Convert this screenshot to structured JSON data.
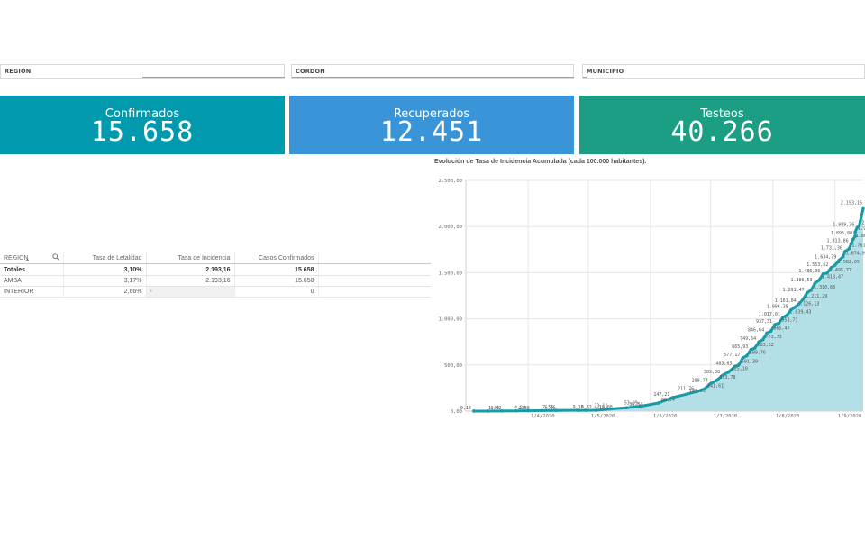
{
  "filters": [
    {
      "label": "REGIÓN"
    },
    {
      "label": "CORDON"
    },
    {
      "label": "MUNICIPIO"
    }
  ],
  "kpis": [
    {
      "title": "Confirmados",
      "value": "15.658",
      "color": "#0099ad"
    },
    {
      "title": "Recuperados",
      "value": "12.451",
      "color": "#3a95d8"
    },
    {
      "title": "Testeos",
      "value": "40.266",
      "color": "#1b9e84"
    }
  ],
  "table": {
    "headers": [
      "REGION",
      "Tasa de Letalidad",
      "Tasa de Incidencia",
      "Casos Confirmados"
    ],
    "totals": [
      "Totales",
      "3,10%",
      "2.193,16",
      "15.658"
    ],
    "rows": [
      [
        "AMBA",
        "3,17%",
        "2.193,16",
        "15.658"
      ],
      [
        "INTERIOR",
        "2,66%",
        "-",
        "0"
      ]
    ]
  },
  "chart_title": "Evolución de Tasa de Incidencia Acumulada (cada 100.000 habitantes).",
  "chart_data": {
    "type": "area",
    "title": "Evolución de Tasa de Incidencia Acumulada (cada 100.000 habitantes).",
    "xlabel": "",
    "ylabel": "",
    "ylim": [
      0,
      2500
    ],
    "y_ticks": [
      "0,00",
      "500,00",
      "1.000,00",
      "1.500,00",
      "2.000,00",
      "2.500,00"
    ],
    "x_ticks": [
      {
        "label": "1/4/2020",
        "date": "2020-04-01"
      },
      {
        "label": "1/5/2020",
        "date": "2020-05-01"
      },
      {
        "label": "1/6/2020",
        "date": "2020-06-01"
      },
      {
        "label": "1/7/2020",
        "date": "2020-07-01"
      },
      {
        "label": "1/8/2020",
        "date": "2020-08-01"
      },
      {
        "label": "1/9/2020",
        "date": "2020-09-01"
      }
    ],
    "x_range": [
      "2020-03-01",
      "2020-09-15"
    ],
    "series_color": "#1a9aa6",
    "area_color": "#b3e0e6",
    "grid": true,
    "points": [
      {
        "x": "2020-03-05",
        "y": 0.14,
        "label": "0,14"
      },
      {
        "x": "2020-03-12",
        "y": 0.42,
        "label": "0,42"
      },
      {
        "x": "2020-03-19",
        "y": 1.4,
        "label": "1,40"
      },
      {
        "x": "2020-03-26",
        "y": 2.38,
        "label": "2,38"
      },
      {
        "x": "2020-04-01",
        "y": 4.2,
        "label": "4,20"
      },
      {
        "x": "2020-04-08",
        "y": 6.16,
        "label": "6,16"
      },
      {
        "x": "2020-04-15",
        "y": 7.56,
        "label": "7,56"
      },
      {
        "x": "2020-04-26",
        "y": 8.82,
        "label": "8,82"
      },
      {
        "x": "2020-04-30",
        "y": 9.1,
        "label": "9,10"
      },
      {
        "x": "2020-05-05",
        "y": 10.08,
        "label": "10,08"
      },
      {
        "x": "2020-05-12",
        "y": 23.11,
        "label": "23,11"
      },
      {
        "x": "2020-05-20",
        "y": 36.84,
        "label": "36,84"
      },
      {
        "x": "2020-05-27",
        "y": 53.09,
        "label": "53,09"
      },
      {
        "x": "2020-06-05",
        "y": 88.24,
        "label": "88,24"
      },
      {
        "x": "2020-06-12",
        "y": 147.21,
        "label": "147,21"
      },
      {
        "x": "2020-06-19",
        "y": 183.51,
        "label": "183,51"
      },
      {
        "x": "2020-06-24",
        "y": 211.76,
        "label": "211,76"
      },
      {
        "x": "2020-06-28",
        "y": 241.61,
        "label": "241,61"
      },
      {
        "x": "2020-07-01",
        "y": 299.74,
        "label": "299,74"
      },
      {
        "x": "2020-07-04",
        "y": 333.78,
        "label": "333,78"
      },
      {
        "x": "2020-07-07",
        "y": 389.38,
        "label": "389,38"
      },
      {
        "x": "2020-07-10",
        "y": 425.1,
        "label": "425,10"
      },
      {
        "x": "2020-07-13",
        "y": 483.65,
        "label": "483,65"
      },
      {
        "x": "2020-07-15",
        "y": 501.3,
        "label": "501,30"
      },
      {
        "x": "2020-07-17",
        "y": 577.17,
        "label": "577,17"
      },
      {
        "x": "2020-07-19",
        "y": 599.76,
        "label": "599,76"
      },
      {
        "x": "2020-07-21",
        "y": 665.93,
        "label": "665,93"
      },
      {
        "x": "2020-07-23",
        "y": 683.52,
        "label": "683,52"
      },
      {
        "x": "2020-07-25",
        "y": 749.64,
        "label": "749,64"
      },
      {
        "x": "2020-07-27",
        "y": 773.73,
        "label": "773,73"
      },
      {
        "x": "2020-07-29",
        "y": 846.64,
        "label": "846,64"
      },
      {
        "x": "2020-07-31",
        "y": 865.47,
        "label": "865,47"
      },
      {
        "x": "2020-08-02",
        "y": 937.31,
        "label": "937,31"
      },
      {
        "x": "2020-08-04",
        "y": 953.71,
        "label": "953,71"
      },
      {
        "x": "2020-08-06",
        "y": 1017.01,
        "label": "1.017,01"
      },
      {
        "x": "2020-08-08",
        "y": 1039.43,
        "label": "1.039,43"
      },
      {
        "x": "2020-08-10",
        "y": 1096.38,
        "label": "1.096,38"
      },
      {
        "x": "2020-08-12",
        "y": 1126.13,
        "label": "1.126,13"
      },
      {
        "x": "2020-08-14",
        "y": 1161.04,
        "label": "1.161,04"
      },
      {
        "x": "2020-08-16",
        "y": 1211.29,
        "label": "1.211,29"
      },
      {
        "x": "2020-08-18",
        "y": 1281.47,
        "label": "1.281,47"
      },
      {
        "x": "2020-08-20",
        "y": 1310.68,
        "label": "1.310,68"
      },
      {
        "x": "2020-08-22",
        "y": 1386.53,
        "label": "1.386,53"
      },
      {
        "x": "2020-08-24",
        "y": 1418.47,
        "label": "1.418,47"
      },
      {
        "x": "2020-08-26",
        "y": 1486.36,
        "label": "1.486,36"
      },
      {
        "x": "2020-08-28",
        "y": 1495.77,
        "label": "1.495,77"
      },
      {
        "x": "2020-08-30",
        "y": 1553.62,
        "label": "1.553,62"
      },
      {
        "x": "2020-09-01",
        "y": 1582.05,
        "label": "1.582,05"
      },
      {
        "x": "2020-09-03",
        "y": 1634.79,
        "label": "1.634,79"
      },
      {
        "x": "2020-09-05",
        "y": 1674.91,
        "label": "1.674,91"
      },
      {
        "x": "2020-09-06",
        "y": 1731.36,
        "label": "1.731,36"
      },
      {
        "x": "2020-09-08",
        "y": 1761.2,
        "label": "1.761,20"
      },
      {
        "x": "2020-09-09",
        "y": 1813.86,
        "label": "1.813,86"
      },
      {
        "x": "2020-09-10",
        "y": 1863.72,
        "label": "1.863,72"
      },
      {
        "x": "2020-09-11",
        "y": 1895.8,
        "label": "1.895,80"
      },
      {
        "x": "2020-09-11",
        "y": 1941.18,
        "label": "1.941,18"
      },
      {
        "x": "2020-09-12",
        "y": 1989.36,
        "label": "1.989,36"
      },
      {
        "x": "2020-09-13",
        "y": 2008.13,
        "label": "2.008,13"
      },
      {
        "x": "2020-09-15",
        "y": 2193.16,
        "label": "2.193,16"
      }
    ]
  }
}
